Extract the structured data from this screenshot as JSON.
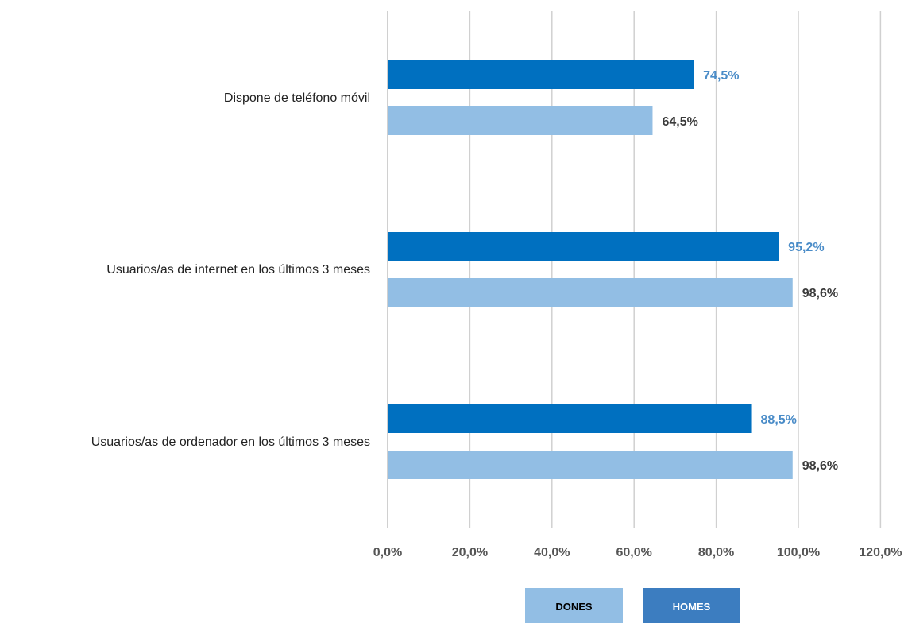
{
  "chart_data": {
    "type": "bar",
    "orientation": "horizontal",
    "categories": [
      "Dispone de teléfono móvil",
      "Usuarios/as de internet  en los últimos 3 meses",
      "Usuarios/as de ordenador  en los últimos 3 meses"
    ],
    "series": [
      {
        "name": "HOMES",
        "color": "#0070C0",
        "label_color": "#4A8CC8",
        "values": [
          74.5,
          95.2,
          88.5
        ],
        "labels": [
          "74,5%",
          "95,2%",
          "88,5%"
        ]
      },
      {
        "name": "DONES",
        "color": "#92BEE4",
        "label_color": "#3B3B3B",
        "values": [
          64.5,
          98.6,
          98.6
        ],
        "labels": [
          "64,5%",
          "98,6%",
          "98,6%"
        ]
      }
    ],
    "xlim": [
      0,
      120
    ],
    "ticks": [
      0,
      20,
      40,
      60,
      80,
      100,
      120
    ],
    "tick_labels": [
      "0,0%",
      "20,0%",
      "40,0%",
      "60,0%",
      "80,0%",
      "100,0%",
      "120,0%"
    ],
    "grid": true,
    "legend": {
      "placement": "bottom",
      "items": [
        {
          "name": "DONES",
          "bg": "#92BEE4",
          "text_color": "#000000"
        },
        {
          "name": "HOMES",
          "bg": "#3C7DC0",
          "text_color": "#FFFFFF"
        }
      ]
    }
  }
}
